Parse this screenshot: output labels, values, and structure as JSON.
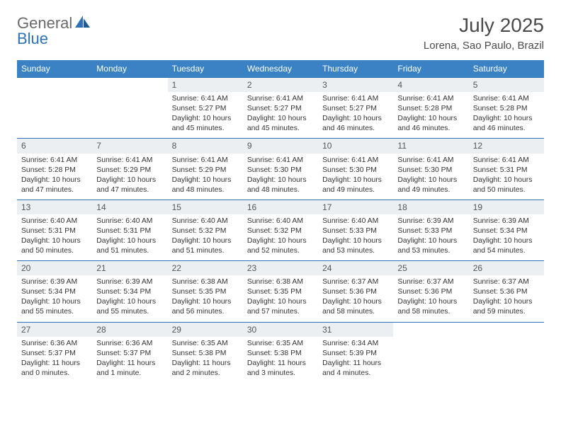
{
  "brand": {
    "name1": "General",
    "name2": "Blue"
  },
  "title": "July 2025",
  "location": "Lorena, Sao Paulo, Brazil",
  "header_bg": "#3b82c4",
  "daynum_bg": "#eceff1",
  "border_color": "#2d72b8",
  "weekdays": [
    "Sunday",
    "Monday",
    "Tuesday",
    "Wednesday",
    "Thursday",
    "Friday",
    "Saturday"
  ],
  "weeks": [
    {
      "days": [
        {
          "n": "",
          "sr": "",
          "ss": "",
          "dl": ""
        },
        {
          "n": "",
          "sr": "",
          "ss": "",
          "dl": ""
        },
        {
          "n": "1",
          "sr": "Sunrise: 6:41 AM",
          "ss": "Sunset: 5:27 PM",
          "dl": "Daylight: 10 hours and 45 minutes."
        },
        {
          "n": "2",
          "sr": "Sunrise: 6:41 AM",
          "ss": "Sunset: 5:27 PM",
          "dl": "Daylight: 10 hours and 45 minutes."
        },
        {
          "n": "3",
          "sr": "Sunrise: 6:41 AM",
          "ss": "Sunset: 5:27 PM",
          "dl": "Daylight: 10 hours and 46 minutes."
        },
        {
          "n": "4",
          "sr": "Sunrise: 6:41 AM",
          "ss": "Sunset: 5:28 PM",
          "dl": "Daylight: 10 hours and 46 minutes."
        },
        {
          "n": "5",
          "sr": "Sunrise: 6:41 AM",
          "ss": "Sunset: 5:28 PM",
          "dl": "Daylight: 10 hours and 46 minutes."
        }
      ]
    },
    {
      "days": [
        {
          "n": "6",
          "sr": "Sunrise: 6:41 AM",
          "ss": "Sunset: 5:28 PM",
          "dl": "Daylight: 10 hours and 47 minutes."
        },
        {
          "n": "7",
          "sr": "Sunrise: 6:41 AM",
          "ss": "Sunset: 5:29 PM",
          "dl": "Daylight: 10 hours and 47 minutes."
        },
        {
          "n": "8",
          "sr": "Sunrise: 6:41 AM",
          "ss": "Sunset: 5:29 PM",
          "dl": "Daylight: 10 hours and 48 minutes."
        },
        {
          "n": "9",
          "sr": "Sunrise: 6:41 AM",
          "ss": "Sunset: 5:30 PM",
          "dl": "Daylight: 10 hours and 48 minutes."
        },
        {
          "n": "10",
          "sr": "Sunrise: 6:41 AM",
          "ss": "Sunset: 5:30 PM",
          "dl": "Daylight: 10 hours and 49 minutes."
        },
        {
          "n": "11",
          "sr": "Sunrise: 6:41 AM",
          "ss": "Sunset: 5:30 PM",
          "dl": "Daylight: 10 hours and 49 minutes."
        },
        {
          "n": "12",
          "sr": "Sunrise: 6:41 AM",
          "ss": "Sunset: 5:31 PM",
          "dl": "Daylight: 10 hours and 50 minutes."
        }
      ]
    },
    {
      "days": [
        {
          "n": "13",
          "sr": "Sunrise: 6:40 AM",
          "ss": "Sunset: 5:31 PM",
          "dl": "Daylight: 10 hours and 50 minutes."
        },
        {
          "n": "14",
          "sr": "Sunrise: 6:40 AM",
          "ss": "Sunset: 5:31 PM",
          "dl": "Daylight: 10 hours and 51 minutes."
        },
        {
          "n": "15",
          "sr": "Sunrise: 6:40 AM",
          "ss": "Sunset: 5:32 PM",
          "dl": "Daylight: 10 hours and 51 minutes."
        },
        {
          "n": "16",
          "sr": "Sunrise: 6:40 AM",
          "ss": "Sunset: 5:32 PM",
          "dl": "Daylight: 10 hours and 52 minutes."
        },
        {
          "n": "17",
          "sr": "Sunrise: 6:40 AM",
          "ss": "Sunset: 5:33 PM",
          "dl": "Daylight: 10 hours and 53 minutes."
        },
        {
          "n": "18",
          "sr": "Sunrise: 6:39 AM",
          "ss": "Sunset: 5:33 PM",
          "dl": "Daylight: 10 hours and 53 minutes."
        },
        {
          "n": "19",
          "sr": "Sunrise: 6:39 AM",
          "ss": "Sunset: 5:34 PM",
          "dl": "Daylight: 10 hours and 54 minutes."
        }
      ]
    },
    {
      "days": [
        {
          "n": "20",
          "sr": "Sunrise: 6:39 AM",
          "ss": "Sunset: 5:34 PM",
          "dl": "Daylight: 10 hours and 55 minutes."
        },
        {
          "n": "21",
          "sr": "Sunrise: 6:39 AM",
          "ss": "Sunset: 5:34 PM",
          "dl": "Daylight: 10 hours and 55 minutes."
        },
        {
          "n": "22",
          "sr": "Sunrise: 6:38 AM",
          "ss": "Sunset: 5:35 PM",
          "dl": "Daylight: 10 hours and 56 minutes."
        },
        {
          "n": "23",
          "sr": "Sunrise: 6:38 AM",
          "ss": "Sunset: 5:35 PM",
          "dl": "Daylight: 10 hours and 57 minutes."
        },
        {
          "n": "24",
          "sr": "Sunrise: 6:37 AM",
          "ss": "Sunset: 5:36 PM",
          "dl": "Daylight: 10 hours and 58 minutes."
        },
        {
          "n": "25",
          "sr": "Sunrise: 6:37 AM",
          "ss": "Sunset: 5:36 PM",
          "dl": "Daylight: 10 hours and 58 minutes."
        },
        {
          "n": "26",
          "sr": "Sunrise: 6:37 AM",
          "ss": "Sunset: 5:36 PM",
          "dl": "Daylight: 10 hours and 59 minutes."
        }
      ]
    },
    {
      "days": [
        {
          "n": "27",
          "sr": "Sunrise: 6:36 AM",
          "ss": "Sunset: 5:37 PM",
          "dl": "Daylight: 11 hours and 0 minutes."
        },
        {
          "n": "28",
          "sr": "Sunrise: 6:36 AM",
          "ss": "Sunset: 5:37 PM",
          "dl": "Daylight: 11 hours and 1 minute."
        },
        {
          "n": "29",
          "sr": "Sunrise: 6:35 AM",
          "ss": "Sunset: 5:38 PM",
          "dl": "Daylight: 11 hours and 2 minutes."
        },
        {
          "n": "30",
          "sr": "Sunrise: 6:35 AM",
          "ss": "Sunset: 5:38 PM",
          "dl": "Daylight: 11 hours and 3 minutes."
        },
        {
          "n": "31",
          "sr": "Sunrise: 6:34 AM",
          "ss": "Sunset: 5:39 PM",
          "dl": "Daylight: 11 hours and 4 minutes."
        },
        {
          "n": "",
          "sr": "",
          "ss": "",
          "dl": ""
        },
        {
          "n": "",
          "sr": "",
          "ss": "",
          "dl": ""
        }
      ]
    }
  ]
}
